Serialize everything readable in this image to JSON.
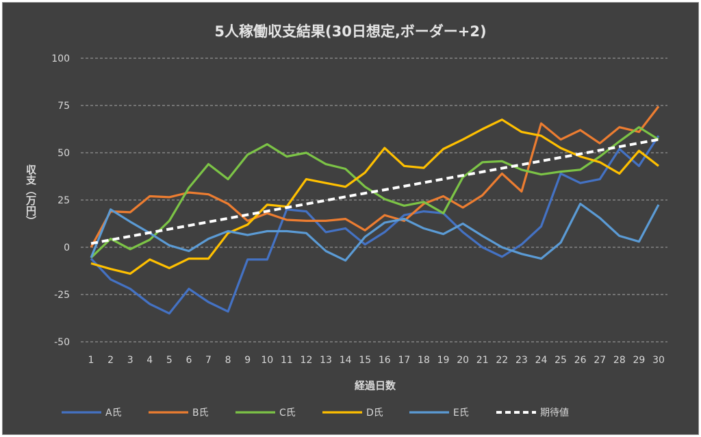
{
  "chart_data": {
    "type": "line",
    "title": "5人稼働収支結果(30日想定,ボーダー+2)",
    "xlabel": "経過日数",
    "ylabel": "収支（万円）",
    "ylim": [
      -50,
      100
    ],
    "yticks": [
      100,
      75,
      50,
      25,
      0,
      -25,
      -50
    ],
    "negative_tick_color": "#ff0000",
    "grid": "horizontal dashed",
    "legend": "bottom",
    "x": [
      1,
      2,
      3,
      4,
      5,
      6,
      7,
      8,
      9,
      10,
      11,
      12,
      13,
      14,
      15,
      16,
      17,
      18,
      19,
      20,
      21,
      22,
      23,
      24,
      25,
      26,
      27,
      28,
      29,
      30
    ],
    "series": [
      {
        "name": "A氏",
        "color": "#4472c4",
        "values": [
          -6,
          -17,
          -22,
          -30,
          -35,
          -22,
          -29,
          -34,
          -6.5,
          -6.5,
          20,
          19,
          8,
          10,
          1.5,
          8,
          17,
          19,
          18,
          8,
          0,
          -5,
          1.5,
          11,
          39,
          34,
          36,
          52,
          43,
          59
        ]
      },
      {
        "name": "B氏",
        "color": "#ed7d31",
        "values": [
          0,
          19,
          18.5,
          27,
          26.5,
          29,
          28,
          23,
          14,
          18,
          14.5,
          14,
          14,
          15,
          9,
          17,
          14,
          23,
          27,
          21,
          27.5,
          39,
          29.5,
          65.5,
          57,
          62,
          55,
          63.5,
          61,
          74.5
        ]
      },
      {
        "name": "C氏",
        "color": "#7cc446",
        "values": [
          -5.5,
          4.5,
          -1,
          4,
          14,
          31.5,
          44,
          36,
          49,
          54.5,
          48,
          50,
          44,
          41.5,
          32,
          25.5,
          22,
          24,
          18,
          37,
          45,
          45.5,
          41,
          38.5,
          40,
          41,
          48,
          56,
          63.5,
          57
        ]
      },
      {
        "name": "D氏",
        "color": "#ffc000",
        "values": [
          -8.5,
          -11.5,
          -14,
          -6.5,
          -11,
          -6,
          -6,
          7.5,
          12,
          22.5,
          21.5,
          36,
          34,
          32,
          39.5,
          52.5,
          43,
          42,
          52,
          57,
          62.5,
          67.5,
          61,
          59,
          52.5,
          48,
          45,
          39,
          51,
          43
        ]
      },
      {
        "name": "E氏",
        "color": "#5b9bd5",
        "values": [
          -5.5,
          20,
          13.5,
          7.5,
          1,
          -2,
          4.5,
          8.5,
          6.5,
          8.5,
          8.5,
          7.5,
          -2,
          -7,
          5.5,
          13,
          15,
          10,
          7,
          12.5,
          6,
          0,
          -3.5,
          -6,
          2.5,
          23,
          15.5,
          6,
          3,
          22.5
        ]
      },
      {
        "name": "期待値",
        "color": "#ffffff",
        "dashed": true,
        "values": [
          2,
          3.9,
          5.8,
          7.7,
          9.6,
          11.5,
          13.4,
          15.3,
          17.2,
          19.1,
          21,
          22.9,
          24.8,
          26.7,
          28.6,
          30.4,
          32.3,
          34.2,
          36.1,
          38,
          39.9,
          41.8,
          43.7,
          45.6,
          47.5,
          49.4,
          51.3,
          53.2,
          55.1,
          57
        ]
      }
    ]
  }
}
